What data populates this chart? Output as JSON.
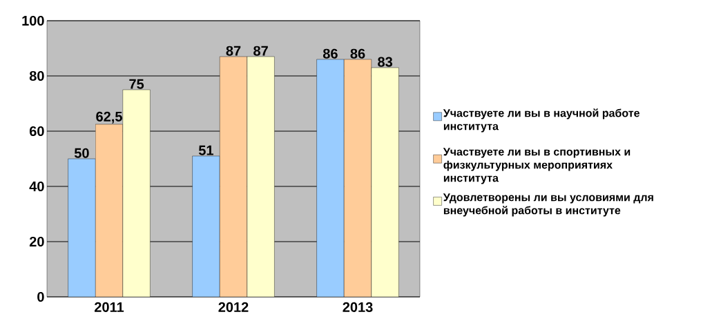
{
  "chart_data": {
    "type": "bar",
    "categories": [
      "2011",
      "2012",
      "2013"
    ],
    "series": [
      {
        "name": "Участвуете ли вы в научной работе института",
        "color": "#99ccff",
        "values": [
          50,
          51,
          86
        ],
        "value_labels": [
          "50",
          "51",
          "86"
        ]
      },
      {
        "name": "Участвуете ли вы в спортивных и физкультурных мероприятиях института",
        "color": "#ffcc99",
        "values": [
          62.5,
          87,
          86
        ],
        "value_labels": [
          "62,5",
          "87",
          "86"
        ]
      },
      {
        "name": "Удовлетворены ли вы условиями для внеучебной работы в институте",
        "color": "#ffffcc",
        "values": [
          75,
          87,
          83
        ],
        "value_labels": [
          "75",
          "87",
          "83"
        ]
      }
    ],
    "ylim": [
      0,
      100
    ],
    "yticks": [
      0,
      20,
      40,
      60,
      80,
      100
    ],
    "grid": "y",
    "legend": "right"
  }
}
